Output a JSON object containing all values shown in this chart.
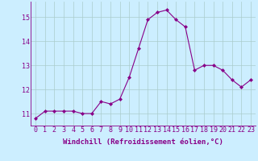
{
  "x": [
    0,
    1,
    2,
    3,
    4,
    5,
    6,
    7,
    8,
    9,
    10,
    11,
    12,
    13,
    14,
    15,
    16,
    17,
    18,
    19,
    20,
    21,
    22,
    23
  ],
  "y": [
    10.8,
    11.1,
    11.1,
    11.1,
    11.1,
    11.0,
    11.0,
    11.5,
    11.4,
    11.6,
    12.5,
    13.7,
    14.9,
    15.2,
    15.3,
    14.9,
    14.6,
    12.8,
    13.0,
    13.0,
    12.8,
    12.4,
    12.1,
    12.4
  ],
  "line_color": "#880088",
  "marker": "D",
  "marker_size": 2.0,
  "bg_color": "#cceeff",
  "grid_color": "#aacccc",
  "xlabel": "Windchill (Refroidissement éolien,°C)",
  "xlabel_fontsize": 6.5,
  "tick_fontsize": 6.0,
  "ylabel_ticks": [
    11,
    12,
    13,
    14,
    15
  ],
  "xtick_labels": [
    "0",
    "1",
    "2",
    "3",
    "4",
    "5",
    "6",
    "7",
    "8",
    "9",
    "10",
    "11",
    "12",
    "13",
    "14",
    "15",
    "16",
    "17",
    "18",
    "19",
    "20",
    "21",
    "22",
    "23"
  ],
  "xlim": [
    -0.5,
    23.5
  ],
  "ylim": [
    10.5,
    15.65
  ]
}
